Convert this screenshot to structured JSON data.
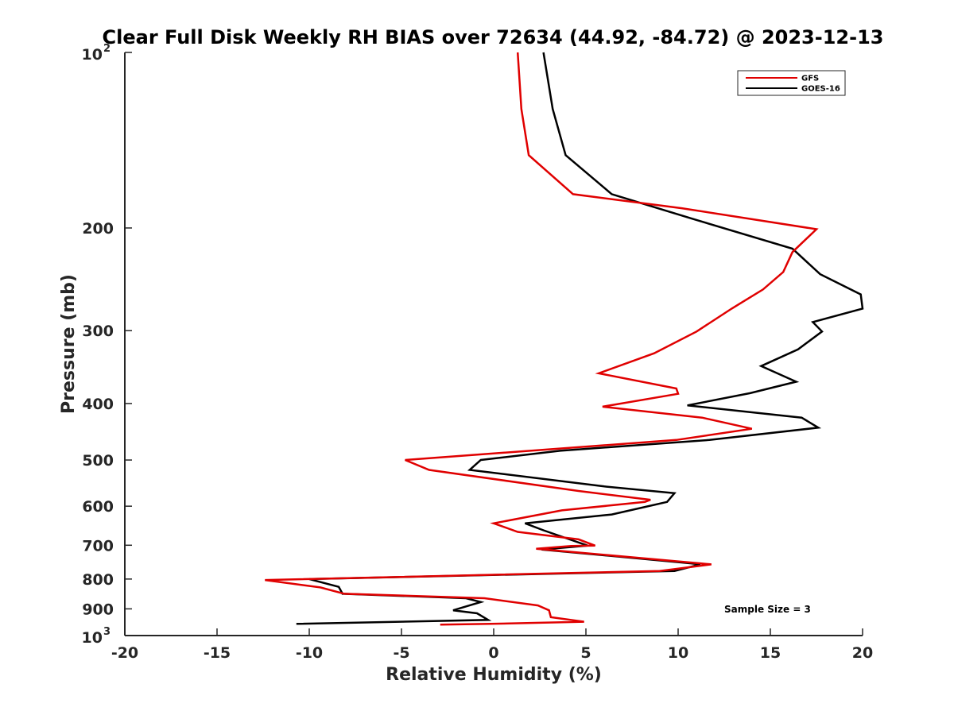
{
  "chart_data": {
    "type": "line",
    "title": "Clear Full Disk Weekly RH BIAS over 72634 (44.92, -84.72) @ 2023-12-13",
    "xlabel": "Relative Humidity (%)",
    "ylabel": "Pressure (mb)",
    "xlim": [
      -20,
      20
    ],
    "ylim": [
      100,
      1000
    ],
    "yscale": "log",
    "y_reversed": true,
    "x_ticks": [
      -20,
      -15,
      -10,
      -5,
      0,
      5,
      10,
      15,
      20
    ],
    "y_ticks": [
      {
        "value": 100,
        "label": "10",
        "sup": "2"
      },
      {
        "value": 200,
        "label": "200"
      },
      {
        "value": 300,
        "label": "300"
      },
      {
        "value": 400,
        "label": "400"
      },
      {
        "value": 500,
        "label": "500"
      },
      {
        "value": 600,
        "label": "600"
      },
      {
        "value": 700,
        "label": "700"
      },
      {
        "value": 800,
        "label": "800"
      },
      {
        "value": 900,
        "label": "900"
      },
      {
        "value": 1000,
        "label": "10",
        "sup": "3"
      }
    ],
    "grid": false,
    "legend_position": "top-right",
    "annotation": "Sample Size = 3",
    "series": [
      {
        "name": "GFS",
        "color": "#e00000",
        "points": [
          [
            1.3,
            100
          ],
          [
            1.5,
            125
          ],
          [
            1.9,
            150
          ],
          [
            4.3,
            175
          ],
          [
            10.2,
            185
          ],
          [
            17.5,
            201
          ],
          [
            16.2,
            220
          ],
          [
            15.7,
            238
          ],
          [
            14.6,
            255
          ],
          [
            12.9,
            275
          ],
          [
            11.0,
            301
          ],
          [
            8.7,
            328
          ],
          [
            5.7,
            355
          ],
          [
            9.9,
            377
          ],
          [
            10.0,
            385
          ],
          [
            5.9,
            405
          ],
          [
            11.3,
            423
          ],
          [
            14.0,
            442
          ],
          [
            9.9,
            462
          ],
          [
            -4.8,
            500
          ],
          [
            -3.5,
            520
          ],
          [
            4.6,
            565
          ],
          [
            8.5,
            585
          ],
          [
            8.2,
            590
          ],
          [
            3.7,
            610
          ],
          [
            0.0,
            642
          ],
          [
            1.3,
            664
          ],
          [
            4.6,
            684
          ],
          [
            5.5,
            701
          ],
          [
            4.2,
            702
          ],
          [
            2.3,
            710
          ],
          [
            11.2,
            752
          ],
          [
            11.8,
            755
          ],
          [
            9.0,
            775
          ],
          [
            -12.4,
            803
          ],
          [
            -9.4,
            827
          ],
          [
            -8.1,
            848
          ],
          [
            -0.5,
            863
          ],
          [
            2.4,
            888
          ],
          [
            3.0,
            905
          ],
          [
            3.1,
            930
          ],
          [
            4.9,
            947
          ],
          [
            -0.2,
            955
          ],
          [
            -2.9,
            958
          ]
        ]
      },
      {
        "name": "GOES-16",
        "color": "#000000",
        "points": [
          [
            2.7,
            100
          ],
          [
            3.2,
            125
          ],
          [
            3.9,
            150
          ],
          [
            6.4,
            175
          ],
          [
            10.8,
            193
          ],
          [
            16.2,
            217
          ],
          [
            17.7,
            240
          ],
          [
            19.9,
            260
          ],
          [
            20.0,
            275
          ],
          [
            17.3,
            290
          ],
          [
            17.8,
            301
          ],
          [
            16.5,
            323
          ],
          [
            14.5,
            345
          ],
          [
            16.4,
            367
          ],
          [
            13.9,
            384
          ],
          [
            10.5,
            403
          ],
          [
            16.7,
            423
          ],
          [
            17.6,
            440
          ],
          [
            11.7,
            462
          ],
          [
            3.6,
            482
          ],
          [
            -0.7,
            500
          ],
          [
            -1.3,
            520
          ],
          [
            6.0,
            555
          ],
          [
            9.8,
            570
          ],
          [
            9.4,
            590
          ],
          [
            6.4,
            620
          ],
          [
            1.7,
            642
          ],
          [
            2.7,
            660
          ],
          [
            4.0,
            682
          ],
          [
            5.1,
            701
          ],
          [
            2.6,
            712
          ],
          [
            10.7,
            752
          ],
          [
            11.2,
            755
          ],
          [
            9.8,
            775
          ],
          [
            -10.0,
            800
          ],
          [
            -8.4,
            825
          ],
          [
            -8.2,
            848
          ],
          [
            -1.5,
            863
          ],
          [
            -0.7,
            876
          ],
          [
            -2.2,
            905
          ],
          [
            -0.9,
            916
          ],
          [
            -0.3,
            940
          ],
          [
            -10.7,
            955
          ]
        ]
      }
    ]
  }
}
